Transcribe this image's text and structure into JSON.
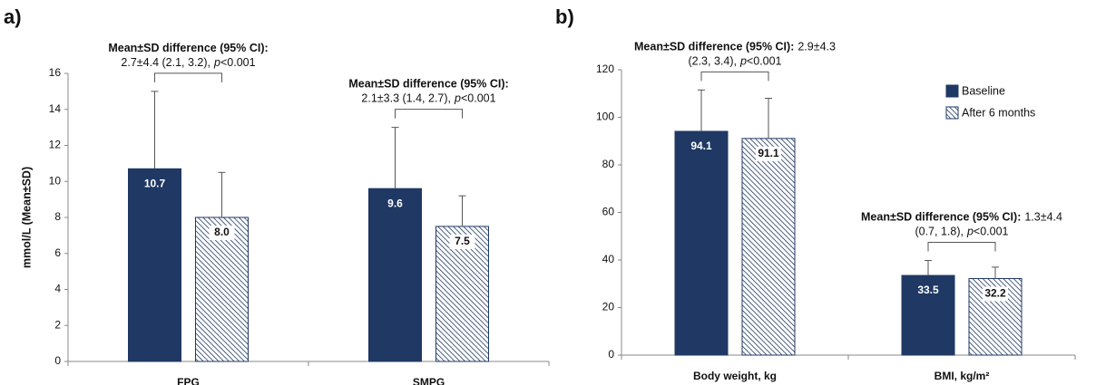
{
  "chart_data": [
    {
      "type": "bar",
      "panel_label": "a)",
      "ylabel": "mmol/L (Mean±SD)",
      "categories": [
        "FPG",
        "SMPG"
      ],
      "series": [
        {
          "name": "Baseline",
          "color": "#1f3864",
          "pattern": "solid",
          "values": [
            10.7,
            9.6
          ],
          "value_labels": [
            "10.7",
            "9.6"
          ],
          "errors": [
            4.3,
            3.4
          ]
        },
        {
          "name": "After 6 months",
          "color": "#1f3864",
          "pattern": "hatch",
          "values": [
            8.0,
            7.5
          ],
          "value_labels": [
            "8.0",
            "7.5"
          ],
          "errors": [
            2.5,
            1.7
          ]
        }
      ],
      "annotations": [
        {
          "heading": "Mean±SD difference (95% CI):",
          "line2": "2.7±4.4 (2.1, 3.2),",
          "p": "p",
          "p_value": "<0.001"
        },
        {
          "heading": "Mean±SD difference (95% CI):",
          "line2": "2.1±3.3 (1.4, 2.7),",
          "p": "p",
          "p_value": "<0.001"
        }
      ],
      "ylim": [
        0,
        16
      ],
      "yticks": [
        0,
        2,
        4,
        6,
        8,
        10,
        12,
        14,
        16
      ],
      "grid": false,
      "legend": false
    },
    {
      "type": "bar",
      "panel_label": "b)",
      "categories": [
        "Body weight, kg",
        "BMI, kg/m²"
      ],
      "series": [
        {
          "name": "Baseline",
          "color": "#1f3864",
          "pattern": "solid",
          "values": [
            94.1,
            33.5
          ],
          "value_labels": [
            "94.1",
            "33.5"
          ],
          "errors": [
            17.4,
            6.3
          ]
        },
        {
          "name": "After 6 months",
          "color": "#1f3864",
          "pattern": "hatch",
          "values": [
            91.1,
            32.2
          ],
          "value_labels": [
            "91.1",
            "32.2"
          ],
          "errors": [
            16.9,
            4.8
          ]
        }
      ],
      "annotations": [
        {
          "heading": "Mean±SD difference (95% CI):",
          "line1_extra": "2.9±4.3",
          "line2": "(2.3, 3.4),",
          "p": "p",
          "p_value": "<0.001"
        },
        {
          "heading": "Mean±SD difference (95% CI):",
          "line1_extra": "1.3±4.4",
          "line2": "(0.7, 1.8),",
          "p": "p",
          "p_value": "<0.001"
        }
      ],
      "ylim": [
        0,
        120
      ],
      "yticks": [
        0,
        20,
        40,
        60,
        80,
        100,
        120
      ],
      "grid": false,
      "legend": "upper right"
    }
  ]
}
